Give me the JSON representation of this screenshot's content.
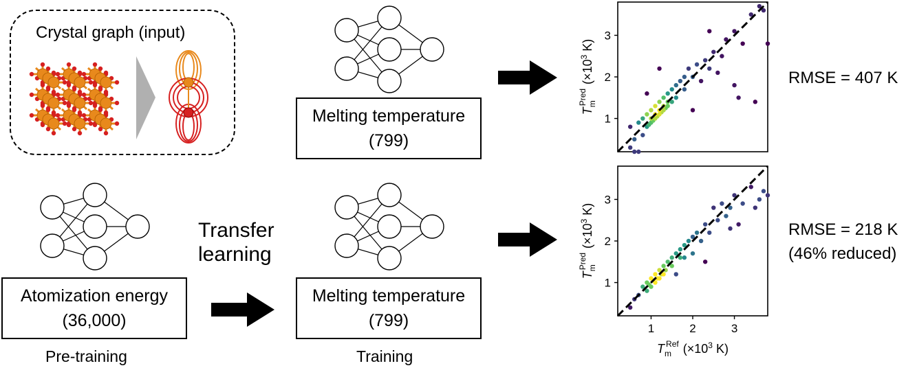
{
  "crystal_graph": {
    "title": "Crystal graph (input)"
  },
  "top_branch": {
    "box_line1": "Melting temperature",
    "box_line2": "(799)",
    "rmse": "RMSE = 407 K"
  },
  "bottom_branch": {
    "pretrain_line1": "Atomization energy",
    "pretrain_line2": "(36,000)",
    "pretrain_caption": "Pre-training",
    "transfer_line1": "Transfer",
    "transfer_line2": "learning",
    "train_line1": "Melting temperature",
    "train_line2": "(799)",
    "train_caption": "Training",
    "rmse_line1": "RMSE = 218 K",
    "rmse_line2": "(46% reduced)"
  },
  "colors": {
    "atom_orange": "#e8891c",
    "atom_red": "#d62020",
    "arrow": "#000000",
    "wedge": "#b0b0b0"
  },
  "chart_data": [
    {
      "type": "scatter",
      "name_id": "top",
      "x_ticks": [
        "1",
        "2",
        "3"
      ],
      "y_ticks": [
        "1",
        "2",
        "3"
      ],
      "xlim": [
        0.2,
        3.8
      ],
      "ylim": [
        0.2,
        3.8
      ],
      "xlabel": "",
      "ylabel_sym": "T",
      "ylabel_sub": "m",
      "ylabel_sup": "Pred",
      "ylabel_unit": "(×10",
      "ylabel_exp": "3",
      "ylabel_tail": " K)",
      "reference_line": "y = x",
      "points": [
        [
          0.5,
          0.3
        ],
        [
          0.6,
          0.2
        ],
        [
          0.7,
          0.2
        ],
        [
          0.6,
          0.5
        ],
        [
          0.5,
          0.8
        ],
        [
          0.7,
          0.9
        ],
        [
          0.8,
          0.6
        ],
        [
          0.8,
          1.0
        ],
        [
          0.9,
          0.8
        ],
        [
          0.9,
          1.1
        ],
        [
          1.0,
          0.9
        ],
        [
          1.0,
          1.2
        ],
        [
          1.1,
          1.0
        ],
        [
          1.1,
          1.3
        ],
        [
          1.2,
          1.1
        ],
        [
          1.2,
          1.4
        ],
        [
          1.3,
          1.2
        ],
        [
          1.3,
          1.5
        ],
        [
          1.4,
          1.3
        ],
        [
          1.4,
          1.6
        ],
        [
          1.5,
          1.4
        ],
        [
          1.5,
          1.7
        ],
        [
          1.6,
          1.5
        ],
        [
          1.6,
          1.8
        ],
        [
          1.7,
          1.9
        ],
        [
          1.8,
          2.0
        ],
        [
          1.8,
          1.7
        ],
        [
          1.9,
          2.2
        ],
        [
          2.0,
          2.0
        ],
        [
          2.1,
          2.3
        ],
        [
          2.2,
          1.9
        ],
        [
          2.3,
          2.4
        ],
        [
          2.4,
          2.2
        ],
        [
          2.5,
          2.6
        ],
        [
          2.6,
          2.1
        ],
        [
          2.7,
          2.5
        ],
        [
          2.8,
          2.9
        ],
        [
          3.0,
          3.1
        ],
        [
          3.0,
          1.8
        ],
        [
          3.2,
          2.8
        ],
        [
          3.4,
          3.5
        ],
        [
          3.5,
          1.4
        ],
        [
          3.6,
          3.7
        ],
        [
          3.7,
          3.6
        ],
        [
          3.8,
          2.8
        ],
        [
          0.9,
          1.6
        ],
        [
          1.2,
          2.2
        ],
        [
          2.0,
          1.2
        ],
        [
          2.4,
          3.1
        ],
        [
          3.1,
          1.5
        ],
        [
          1.0,
          1.0
        ],
        [
          1.1,
          1.1
        ],
        [
          1.2,
          1.2
        ],
        [
          1.05,
          0.95
        ],
        [
          1.15,
          1.05
        ],
        [
          1.25,
          1.15
        ],
        [
          0.95,
          0.85
        ],
        [
          1.3,
          1.3
        ],
        [
          1.35,
          1.25
        ],
        [
          1.4,
          1.4
        ]
      ]
    },
    {
      "type": "scatter",
      "name_id": "bottom",
      "x_ticks": [
        "1",
        "2",
        "3"
      ],
      "y_ticks": [
        "1",
        "2",
        "3"
      ],
      "xlim": [
        0.2,
        3.8
      ],
      "ylim": [
        0.2,
        3.8
      ],
      "xlabel_sym": "T",
      "xlabel_sub": "m",
      "xlabel_sup": "Ref",
      "xlabel_unit": "(×10",
      "xlabel_exp": "3",
      "xlabel_tail": " K)",
      "ylabel_sym": "T",
      "ylabel_sub": "m",
      "ylabel_sup": "Pred",
      "ylabel_unit": "(×10",
      "ylabel_exp": "3",
      "ylabel_tail": " K)",
      "reference_line": "y = x",
      "points": [
        [
          0.5,
          0.4
        ],
        [
          0.6,
          0.6
        ],
        [
          0.7,
          0.7
        ],
        [
          0.8,
          0.9
        ],
        [
          0.9,
          0.8
        ],
        [
          0.9,
          1.0
        ],
        [
          1.0,
          1.1
        ],
        [
          1.0,
          0.9
        ],
        [
          1.1,
          1.2
        ],
        [
          1.1,
          1.0
        ],
        [
          1.2,
          1.3
        ],
        [
          1.2,
          1.1
        ],
        [
          1.3,
          1.4
        ],
        [
          1.3,
          1.2
        ],
        [
          1.4,
          1.5
        ],
        [
          1.5,
          1.4
        ],
        [
          1.5,
          1.6
        ],
        [
          1.6,
          1.7
        ],
        [
          1.7,
          1.6
        ],
        [
          1.7,
          1.8
        ],
        [
          1.8,
          1.9
        ],
        [
          1.8,
          1.6
        ],
        [
          1.9,
          2.0
        ],
        [
          2.0,
          2.1
        ],
        [
          2.0,
          1.7
        ],
        [
          2.1,
          2.2
        ],
        [
          2.2,
          2.0
        ],
        [
          2.3,
          2.4
        ],
        [
          2.4,
          2.2
        ],
        [
          2.5,
          2.8
        ],
        [
          2.6,
          2.5
        ],
        [
          2.7,
          2.9
        ],
        [
          2.8,
          2.6
        ],
        [
          2.9,
          2.8
        ],
        [
          3.0,
          3.1
        ],
        [
          3.1,
          2.4
        ],
        [
          3.2,
          2.9
        ],
        [
          3.4,
          3.3
        ],
        [
          3.5,
          2.8
        ],
        [
          3.6,
          3.0
        ],
        [
          3.7,
          3.2
        ],
        [
          3.8,
          3.1
        ],
        [
          1.6,
          1.2
        ],
        [
          2.3,
          1.5
        ],
        [
          2.9,
          2.3
        ],
        [
          1.05,
          1.05
        ],
        [
          1.15,
          1.1
        ],
        [
          1.25,
          1.2
        ],
        [
          0.95,
          0.95
        ],
        [
          1.35,
          1.3
        ]
      ]
    }
  ]
}
